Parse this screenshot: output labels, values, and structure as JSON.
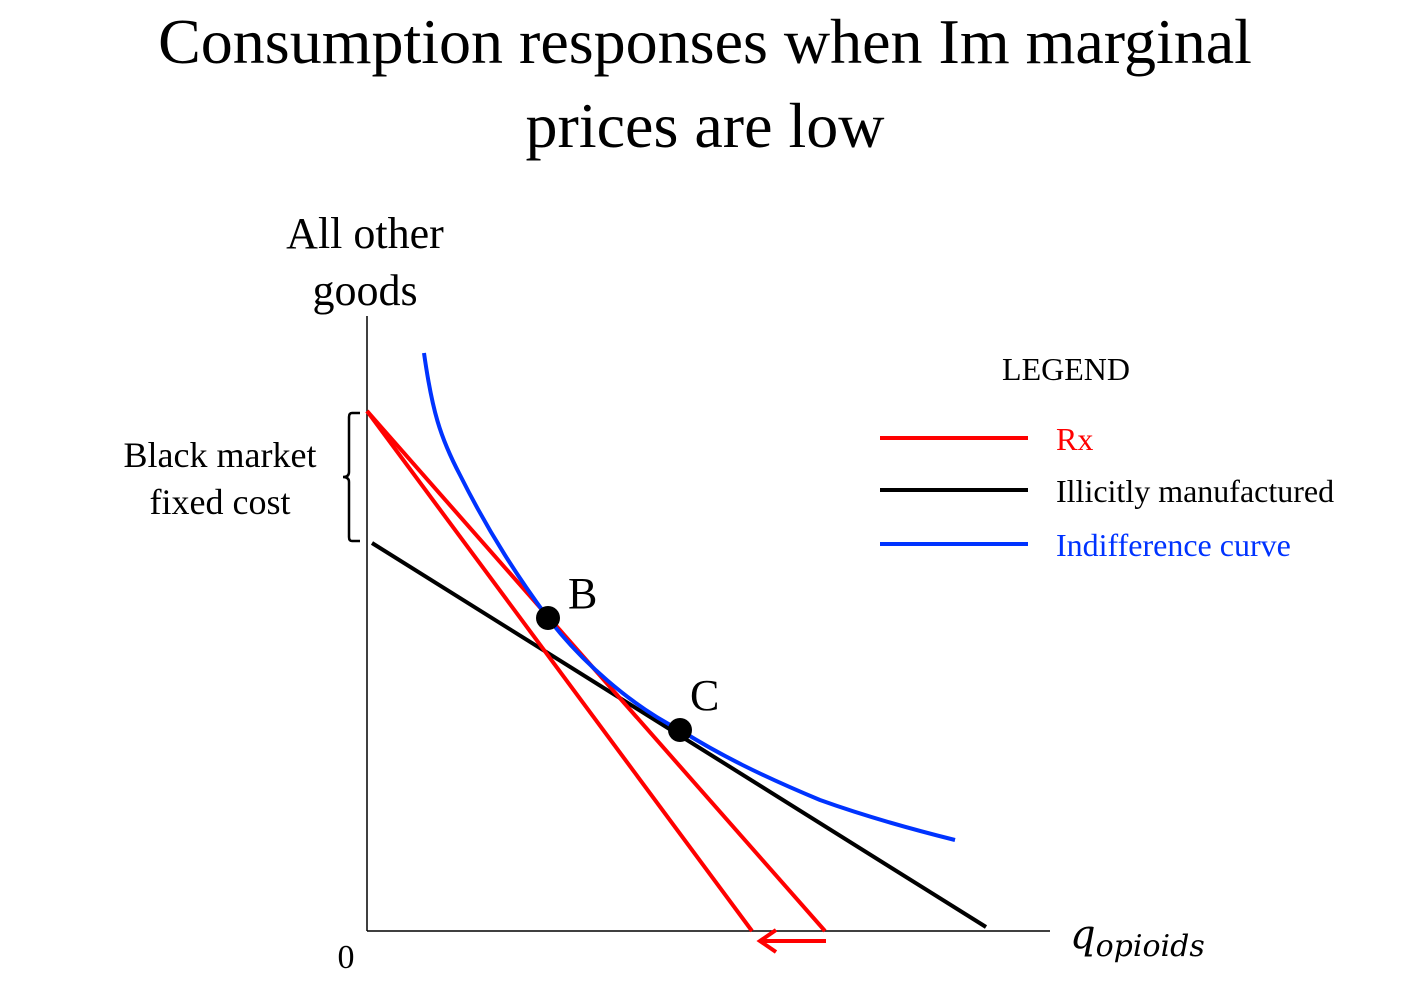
{
  "title": {
    "line1": "Consumption responses when Im marginal",
    "line2": "prices are low"
  },
  "axes": {
    "y_label_line1": "All other",
    "y_label_line2": "goods",
    "x_label": "q",
    "x_label_subscript": "opioids",
    "origin": "0"
  },
  "annotations": {
    "bracket_label_line1": "Black market",
    "bracket_label_line2": "fixed cost",
    "point_b": "B",
    "point_c": "C"
  },
  "legend": {
    "title": "LEGEND",
    "items": [
      {
        "label": "Rx",
        "color": "#ff0000"
      },
      {
        "label": "Illicitly manufactured",
        "color": "#000000"
      },
      {
        "label": "Indifference curve",
        "color": "#0033ff"
      }
    ]
  },
  "colors": {
    "rx": "#ff0000",
    "illicit": "#000000",
    "indifference": "#0033ff"
  }
}
